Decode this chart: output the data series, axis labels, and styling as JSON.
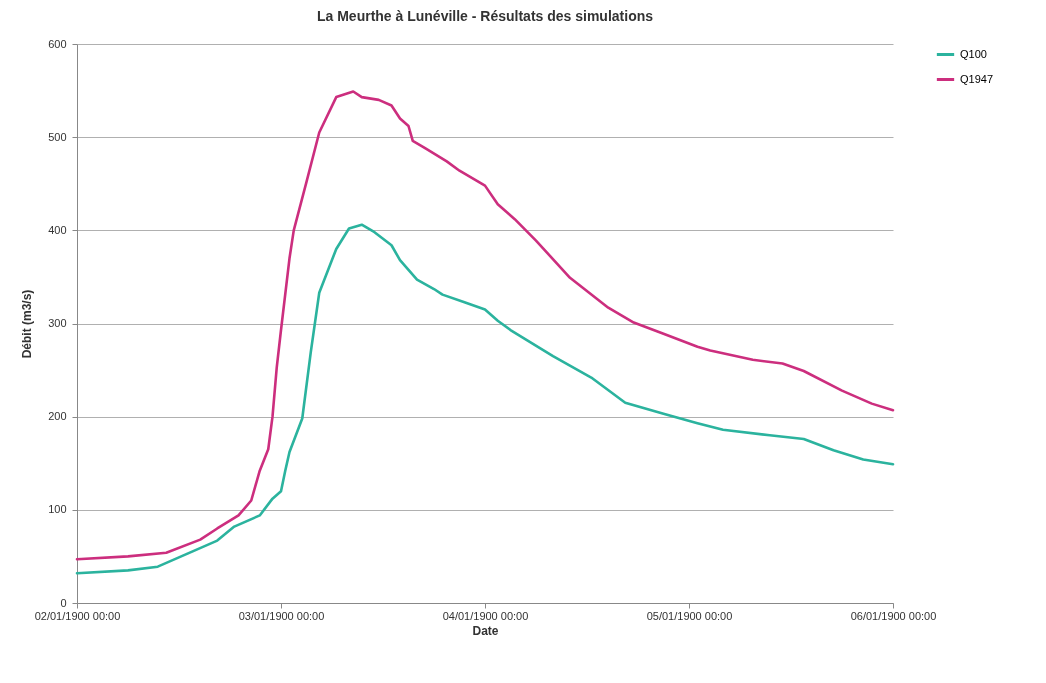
{
  "chart_data": {
    "type": "line",
    "title": "La Meurthe à Lunéville - Résultats des simulations",
    "xlabel": "Date",
    "ylabel": "Débit (m3/s)",
    "xlim": [
      "1900-01-02T00:00",
      "1900-01-06T00:00"
    ],
    "xticks": [
      {
        "value": "1900-01-02T00:00",
        "label": "02/01/1900 00:00"
      },
      {
        "value": "1900-01-03T00:00",
        "label": "03/01/1900 00:00"
      },
      {
        "value": "1900-01-04T00:00",
        "label": "04/01/1900 00:00"
      },
      {
        "value": "1900-01-05T00:00",
        "label": "05/01/1900 00:00"
      },
      {
        "value": "1900-01-06T00:00",
        "label": "06/01/1900 00:00"
      }
    ],
    "ylim": [
      0,
      600
    ],
    "yticks": [
      0,
      100,
      200,
      300,
      400,
      500,
      600
    ],
    "grid": "y",
    "legend": "right",
    "line_style": "solid",
    "marker": "none",
    "series": [
      {
        "name": "Q100",
        "color": "#2bb39e",
        "x": [
          "1900-01-02T00:00",
          "1900-01-02T06:00",
          "1900-01-02T09:30",
          "1900-01-02T13:00",
          "1900-01-02T16:30",
          "1900-01-02T18:30",
          "1900-01-02T21:30",
          "1900-01-02T23:00",
          "1900-01-03T00:00",
          "1900-01-03T00:30",
          "1900-01-03T01:00",
          "1900-01-03T02:30",
          "1900-01-03T03:30",
          "1900-01-03T04:30",
          "1900-01-03T06:30",
          "1900-01-03T08:00",
          "1900-01-03T09:30",
          "1900-01-03T11:00",
          "1900-01-03T13:00",
          "1900-01-03T14:00",
          "1900-01-03T16:00",
          "1900-01-03T18:00",
          "1900-01-03T19:00",
          "1900-01-03T21:30",
          "1900-01-04T00:00",
          "1900-01-04T01:30",
          "1900-01-04T03:00",
          "1900-01-04T08:00",
          "1900-01-04T12:30",
          "1900-01-04T16:30",
          "1900-01-04T21:00",
          "1900-01-05T01:00",
          "1900-01-05T04:00",
          "1900-01-05T09:30",
          "1900-01-05T13:30",
          "1900-01-05T17:00",
          "1900-01-05T20:30",
          "1900-01-06T00:00"
        ],
        "values": [
          32,
          35,
          39,
          53,
          67,
          82,
          94,
          112,
          120,
          142,
          162,
          198,
          269,
          333,
          380,
          402,
          406,
          398,
          384,
          368,
          347,
          337,
          331,
          323,
          315,
          303,
          293,
          265,
          242,
          215,
          203,
          193,
          186,
          180,
          176,
          164,
          154,
          149
        ]
      },
      {
        "name": "Q1947",
        "color": "#cc2e7e",
        "x": [
          "1900-01-02T00:00",
          "1900-01-02T06:00",
          "1900-01-02T10:30",
          "1900-01-02T14:30",
          "1900-01-02T16:30",
          "1900-01-02T19:00",
          "1900-01-02T20:30",
          "1900-01-02T21:30",
          "1900-01-02T22:30",
          "1900-01-02T23:00",
          "1900-01-02T23:30",
          "1900-01-03T00:00",
          "1900-01-03T01:00",
          "1900-01-03T01:30",
          "1900-01-03T03:00",
          "1900-01-03T04:30",
          "1900-01-03T06:30",
          "1900-01-03T08:30",
          "1900-01-03T09:30",
          "1900-01-03T11:30",
          "1900-01-03T13:00",
          "1900-01-03T14:00",
          "1900-01-03T15:00",
          "1900-01-03T15:30",
          "1900-01-03T17:00",
          "1900-01-03T19:30",
          "1900-01-03T21:00",
          "1900-01-04T00:00",
          "1900-01-04T01:30",
          "1900-01-04T03:30",
          "1900-01-04T06:00",
          "1900-01-04T10:00",
          "1900-01-04T14:30",
          "1900-01-04T17:30",
          "1900-01-04T21:00",
          "1900-01-05T01:00",
          "1900-01-05T02:30",
          "1900-01-05T07:30",
          "1900-01-05T11:00",
          "1900-01-05T13:30",
          "1900-01-05T18:00",
          "1900-01-05T21:30",
          "1900-01-06T00:00"
        ],
        "values": [
          47,
          50,
          54,
          68,
          80,
          94,
          110,
          142,
          165,
          200,
          253,
          293,
          370,
          400,
          452,
          505,
          543,
          549,
          543,
          540,
          534,
          520,
          512,
          496,
          488,
          474,
          464,
          448,
          428,
          412,
          389,
          349,
          317,
          301,
          289,
          275,
          271,
          261,
          257,
          249,
          228,
          214,
          207
        ]
      }
    ]
  }
}
